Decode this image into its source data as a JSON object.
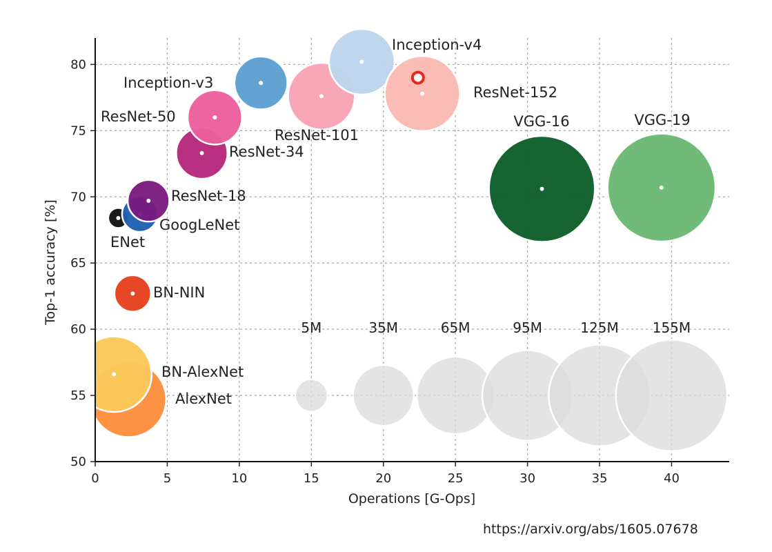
{
  "chart_data": {
    "type": "scatter",
    "xlabel": "Operations [G-Ops]",
    "ylabel": "Top-1 accuracy [%]",
    "xlim": [
      0,
      44
    ],
    "ylim": [
      50,
      82
    ],
    "xticks": [
      "0",
      "5",
      "10",
      "15",
      "20",
      "25",
      "30",
      "35",
      "40"
    ],
    "yticks": [
      "50",
      "55",
      "60",
      "65",
      "70",
      "75",
      "80"
    ],
    "grid": true,
    "bubble_size_meaning": "number of parameters",
    "points": [
      {
        "name": "AlexNet",
        "x": 2.3,
        "y": 54.7,
        "params_m": 61,
        "color": "#fd8d3c"
      },
      {
        "name": "BN-AlexNet",
        "x": 1.3,
        "y": 56.6,
        "params_m": 61,
        "color": "#fdc85c"
      },
      {
        "name": "BN-NIN",
        "x": 2.6,
        "y": 62.7,
        "params_m": 7.6,
        "color": "#e6401c"
      },
      {
        "name": "ENet",
        "x": 1.6,
        "y": 68.4,
        "params_m": 0.4,
        "color": "#111111"
      },
      {
        "name": "GoogLeNet",
        "x": 3.1,
        "y": 68.7,
        "params_m": 7,
        "color": "#1f5fb0"
      },
      {
        "name": "ResNet-18",
        "x": 3.7,
        "y": 69.7,
        "params_m": 11.7,
        "color": "#7a1a80"
      },
      {
        "name": "ResNet-34",
        "x": 7.4,
        "y": 73.3,
        "params_m": 21.8,
        "color": "#b5287a"
      },
      {
        "name": "ResNet-50",
        "x": 8.3,
        "y": 76,
        "params_m": 25.6,
        "color": "#ec5f9c"
      },
      {
        "name": "Inception-v3",
        "x": 11.5,
        "y": 78.6,
        "params_m": 23.8,
        "color": "#5c9fd2"
      },
      {
        "name": "ResNet-101",
        "x": 15.7,
        "y": 77.6,
        "params_m": 44.5,
        "color": "#f8a3b3"
      },
      {
        "name": "Inception-v4",
        "x": 18.5,
        "y": 80.2,
        "params_m": 42.7,
        "color": "#bcd4ec"
      },
      {
        "name": "ResNet-152",
        "x": 22.7,
        "y": 77.8,
        "params_m": 60.2,
        "color": "#fbb9b2"
      },
      {
        "name": "VGG-16",
        "x": 31,
        "y": 70.6,
        "params_m": 138,
        "color": "#0e5e2b"
      },
      {
        "name": "VGG-19",
        "x": 39.3,
        "y": 70.7,
        "params_m": 144,
        "color": "#6bb874"
      }
    ],
    "highlight": {
      "x": 22.4,
      "y": 79,
      "color": "#e8271d"
    },
    "size_legend": [
      {
        "label": "5M",
        "x": 15,
        "params_m": 5
      },
      {
        "label": "35M",
        "x": 20,
        "params_m": 35
      },
      {
        "label": "65M",
        "x": 25,
        "params_m": 65
      },
      {
        "label": "95M",
        "x": 30,
        "params_m": 95
      },
      {
        "label": "125M",
        "x": 35,
        "params_m": 125
      },
      {
        "label": "155M",
        "x": 40,
        "params_m": 155
      }
    ],
    "size_legend_y": 55
  },
  "source_url": "https://arxiv.org/abs/1605.07678"
}
